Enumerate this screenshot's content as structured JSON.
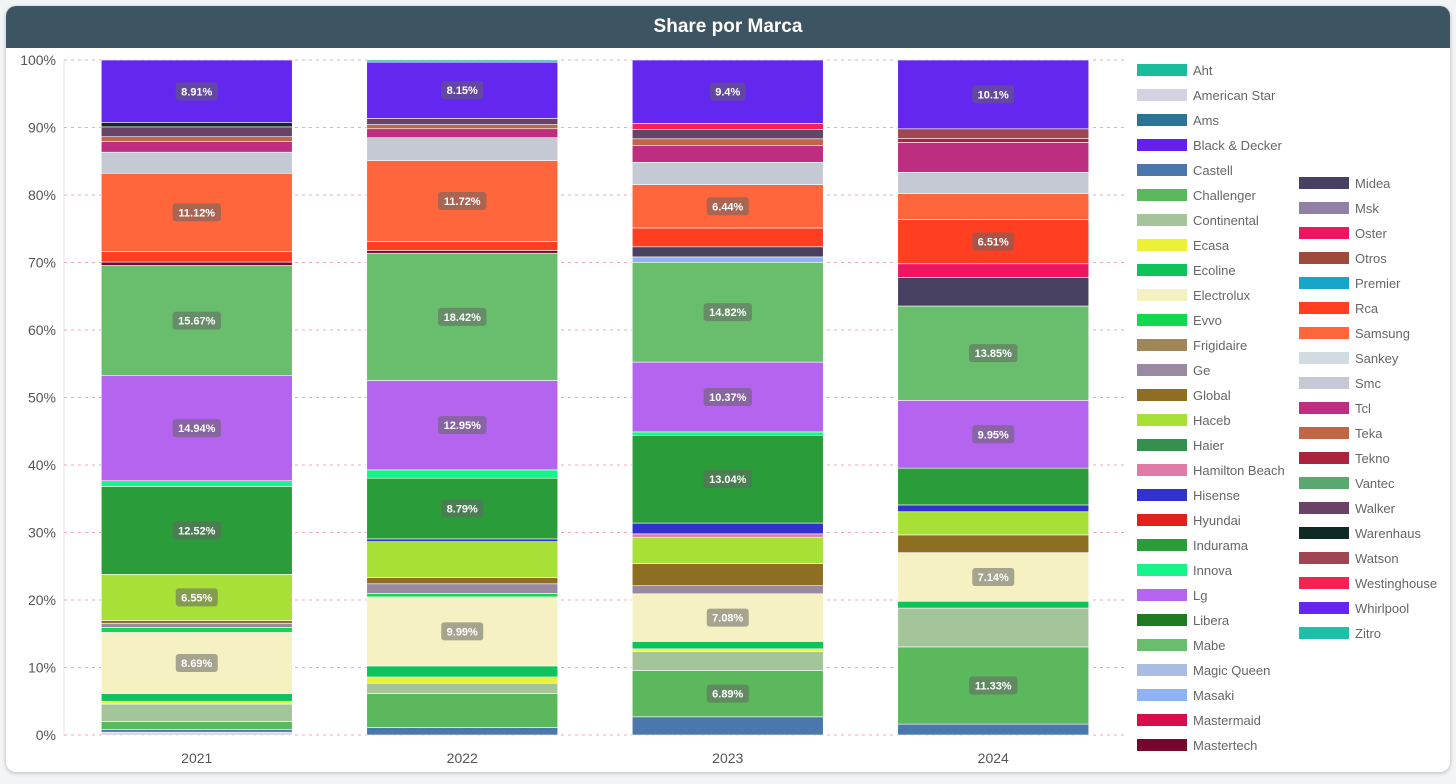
{
  "header": {
    "title": "Share por Marca"
  },
  "chart_data": {
    "type": "bar",
    "stacked": true,
    "percent_stacked": true,
    "categories": [
      "2021",
      "2022",
      "2023",
      "2024"
    ],
    "yticks": [
      "0%",
      "10%",
      "20%",
      "30%",
      "40%",
      "50%",
      "60%",
      "70%",
      "80%",
      "90%",
      "100%"
    ],
    "ylim": [
      0,
      100
    ],
    "grid": "horizontal dashed",
    "legend_position": "right",
    "series": [
      {
        "name": "Aht",
        "color": "#1abc9c",
        "values": [
          0.0,
          0.0,
          0.0,
          0.0
        ]
      },
      {
        "name": "American Star",
        "color": "#d5d3e3",
        "values": [
          0.4,
          0.0,
          0.0,
          0.0
        ]
      },
      {
        "name": "Ams",
        "color": "#2c7396",
        "values": [
          0.0,
          0.0,
          0.0,
          0.0
        ]
      },
      {
        "name": "Black & Decker",
        "color": "#6320ee",
        "values": [
          0.0,
          0.0,
          0.0,
          0.0
        ]
      },
      {
        "name": "Castell",
        "color": "#4a78ac",
        "values": [
          0.4,
          1.1,
          2.7,
          1.6
        ]
      },
      {
        "name": "Challenger",
        "color": "#5cb85c",
        "values": [
          1.1,
          4.9,
          6.89,
          11.33
        ]
      },
      {
        "name": "Continental",
        "color": "#a4c49a",
        "values": [
          2.5,
          1.5,
          2.8,
          5.7
        ]
      },
      {
        "name": "Ecasa",
        "color": "#ecf036",
        "values": [
          0.4,
          0.9,
          0.4,
          0.0
        ]
      },
      {
        "name": "Ecoline",
        "color": "#0ec45a",
        "values": [
          1.1,
          1.6,
          1.1,
          1.0
        ]
      },
      {
        "name": "Electrolux",
        "color": "#f5f1c2",
        "values": [
          8.69,
          9.99,
          7.08,
          7.14
        ]
      },
      {
        "name": "Evvo",
        "color": "#11d94d",
        "values": [
          0.7,
          0.5,
          0.0,
          0.0
        ]
      },
      {
        "name": "Frigidaire",
        "color": "#a0875a",
        "values": [
          0.0,
          0.0,
          0.0,
          0.0
        ]
      },
      {
        "name": "Ge",
        "color": "#9a8aa1",
        "values": [
          0.6,
          1.4,
          1.2,
          0.0
        ]
      },
      {
        "name": "Global",
        "color": "#8d6e22",
        "values": [
          0.4,
          0.9,
          3.3,
          2.6
        ]
      },
      {
        "name": "Haceb",
        "color": "#a8e038",
        "values": [
          6.55,
          5.2,
          3.9,
          3.4
        ]
      },
      {
        "name": "Haier",
        "color": "#35904f",
        "values": [
          0.0,
          0.0,
          0.0,
          0.0
        ]
      },
      {
        "name": "Hamilton Beach",
        "color": "#e07aa6",
        "values": [
          0.0,
          0.0,
          0.5,
          0.0
        ]
      },
      {
        "name": "Hisense",
        "color": "#3132ce",
        "values": [
          0.0,
          0.4,
          1.6,
          1.0
        ]
      },
      {
        "name": "Hyundai",
        "color": "#e0201d",
        "values": [
          0.0,
          0.0,
          0.0,
          0.0
        ]
      },
      {
        "name": "Indurama",
        "color": "#2b9c3a",
        "values": [
          12.52,
          8.79,
          13.04,
          5.4
        ]
      },
      {
        "name": "Innova",
        "color": "#15f589",
        "values": [
          0.8,
          1.2,
          0.5,
          0.0
        ]
      },
      {
        "name": "Lg",
        "color": "#b464ef",
        "values": [
          14.94,
          12.95,
          10.37,
          9.95
        ]
      },
      {
        "name": "Libera",
        "color": "#1f7a21",
        "values": [
          0.0,
          0.0,
          0.0,
          0.0
        ]
      },
      {
        "name": "Mabe",
        "color": "#69be6d",
        "values": [
          15.67,
          18.42,
          14.82,
          13.85
        ]
      },
      {
        "name": "Magic Queen",
        "color": "#a9bde3",
        "values": [
          0.0,
          0.0,
          0.0,
          0.0
        ]
      },
      {
        "name": "Masaki",
        "color": "#8fb2f5",
        "values": [
          0.0,
          0.0,
          0.8,
          0.0
        ]
      },
      {
        "name": "Mastermaid",
        "color": "#d80e4c",
        "values": [
          0.0,
          0.0,
          0.0,
          0.0
        ]
      },
      {
        "name": "Mastertech",
        "color": "#75062e",
        "values": [
          0.5,
          0.4,
          0.0,
          0.0
        ]
      },
      {
        "name": "Midea",
        "color": "#484060",
        "values": [
          0.0,
          0.0,
          1.5,
          4.2
        ]
      },
      {
        "name": "Msk",
        "color": "#9080a5",
        "values": [
          0.0,
          0.0,
          0.0,
          0.0
        ]
      },
      {
        "name": "Oster",
        "color": "#ee1660",
        "values": [
          0.0,
          0.0,
          0.0,
          2.0
        ]
      },
      {
        "name": "Otros",
        "color": "#9e4a3d",
        "values": [
          0.0,
          0.0,
          0.0,
          0.0
        ]
      },
      {
        "name": "Premier",
        "color": "#17a6ca",
        "values": [
          0.0,
          0.0,
          0.0,
          0.0
        ]
      },
      {
        "name": "Rca",
        "color": "#ff3e22",
        "values": [
          1.5,
          1.3,
          2.8,
          6.51
        ]
      },
      {
        "name": "Samsung",
        "color": "#ff663c",
        "values": [
          11.12,
          11.72,
          6.44,
          3.8
        ]
      },
      {
        "name": "Sankey",
        "color": "#d2dbe1",
        "values": [
          0.0,
          0.0,
          0.0,
          0.0
        ]
      },
      {
        "name": "Smc",
        "color": "#c5c9d4",
        "values": [
          3.0,
          3.3,
          3.3,
          3.1
        ]
      },
      {
        "name": "Tcl",
        "color": "#bd2d80",
        "values": [
          1.5,
          1.3,
          2.5,
          4.4
        ]
      },
      {
        "name": "Teka",
        "color": "#c06546",
        "values": [
          0.7,
          0.6,
          1.0,
          0.0
        ]
      },
      {
        "name": "Tekno",
        "color": "#aa2440",
        "values": [
          0.0,
          0.0,
          0.0,
          0.6
        ]
      },
      {
        "name": "Vantec",
        "color": "#5aa86f",
        "values": [
          0.0,
          0.0,
          0.0,
          0.0
        ]
      },
      {
        "name": "Walker",
        "color": "#6a4268",
        "values": [
          1.4,
          0.9,
          1.4,
          0.0
        ]
      },
      {
        "name": "Warenhaus",
        "color": "#0f2a25",
        "values": [
          0.6,
          0.0,
          0.0,
          0.0
        ]
      },
      {
        "name": "Watson",
        "color": "#a04552",
        "values": [
          0.0,
          0.0,
          0.0,
          1.4
        ]
      },
      {
        "name": "Westinghouse",
        "color": "#f2234f",
        "values": [
          0.0,
          0.0,
          0.9,
          0.0
        ]
      },
      {
        "name": "Whirlpool",
        "color": "#6327f0",
        "values": [
          8.91,
          8.15,
          9.4,
          10.1
        ]
      },
      {
        "name": "Zitro",
        "color": "#1ebfa7",
        "values": [
          0.0,
          0.3,
          0.0,
          0.0
        ]
      }
    ],
    "data_labels": [
      {
        "category": "2021",
        "series": "Electrolux",
        "text": "8.69%"
      },
      {
        "category": "2021",
        "series": "Haceb",
        "text": "6.55%"
      },
      {
        "category": "2021",
        "series": "Indurama",
        "text": "12.52%"
      },
      {
        "category": "2021",
        "series": "Lg",
        "text": "14.94%"
      },
      {
        "category": "2021",
        "series": "Mabe",
        "text": "15.67%"
      },
      {
        "category": "2021",
        "series": "Samsung",
        "text": "11.12%"
      },
      {
        "category": "2021",
        "series": "Whirlpool",
        "text": "8.91%"
      },
      {
        "category": "2022",
        "series": "Electrolux",
        "text": "9.99%"
      },
      {
        "category": "2022",
        "series": "Indurama",
        "text": "8.79%"
      },
      {
        "category": "2022",
        "series": "Lg",
        "text": "12.95%"
      },
      {
        "category": "2022",
        "series": "Mabe",
        "text": "18.42%"
      },
      {
        "category": "2022",
        "series": "Samsung",
        "text": "11.72%"
      },
      {
        "category": "2022",
        "series": "Whirlpool",
        "text": "8.15%"
      },
      {
        "category": "2023",
        "series": "Challenger",
        "text": "6.89%"
      },
      {
        "category": "2023",
        "series": "Electrolux",
        "text": "7.08%"
      },
      {
        "category": "2023",
        "series": "Indurama",
        "text": "13.04%"
      },
      {
        "category": "2023",
        "series": "Lg",
        "text": "10.37%"
      },
      {
        "category": "2023",
        "series": "Mabe",
        "text": "14.82%"
      },
      {
        "category": "2023",
        "series": "Samsung",
        "text": "6.44%"
      },
      {
        "category": "2023",
        "series": "Whirlpool",
        "text": "9.4%"
      },
      {
        "category": "2024",
        "series": "Challenger",
        "text": "11.33%"
      },
      {
        "category": "2024",
        "series": "Electrolux",
        "text": "7.14%"
      },
      {
        "category": "2024",
        "series": "Lg",
        "text": "9.95%"
      },
      {
        "category": "2024",
        "series": "Mabe",
        "text": "13.85%"
      },
      {
        "category": "2024",
        "series": "Rca",
        "text": "6.51%"
      },
      {
        "category": "2024",
        "series": "Whirlpool",
        "text": "10.1%"
      }
    ]
  }
}
